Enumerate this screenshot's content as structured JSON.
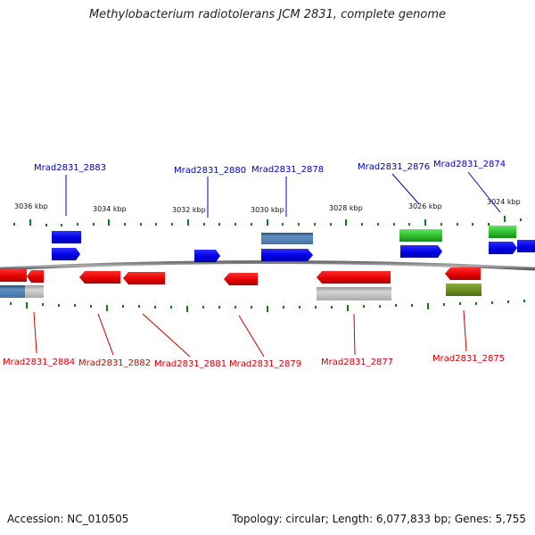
{
  "title": "Methylobacterium radiotolerans JCM 2831, complete genome",
  "footer": {
    "accession_label": "Accession:",
    "accession": "NC_010505",
    "topology_text": "Topology: circular; Length: 6,077,833 bp; Genes: 5,755"
  },
  "colors": {
    "forward_label": "#0000c0",
    "reverse_label": "#cc0000",
    "forward_gene": "#0000ee",
    "reverse_gene": "#ee0000",
    "tick": "#1a7a1a",
    "backbone": "#808080"
  },
  "scale": {
    "unit": "kbp",
    "tick_labels": [
      "3036 kbp",
      "3034 kbp",
      "3032 kbp",
      "3030 kbp",
      "3028 kbp",
      "3026 kbp",
      "3024 kbp"
    ]
  },
  "genes": [
    {
      "id": "Mrad2831_2883",
      "strand": "+"
    },
    {
      "id": "Mrad2831_2880",
      "strand": "+"
    },
    {
      "id": "Mrad2831_2878",
      "strand": "+"
    },
    {
      "id": "Mrad2831_2876",
      "strand": "+"
    },
    {
      "id": "Mrad2831_2874",
      "strand": "+"
    },
    {
      "id": "Mrad2831_2884",
      "strand": "-"
    },
    {
      "id": "Mrad2831_2882",
      "strand": "-"
    },
    {
      "id": "Mrad2831_2881",
      "strand": "-"
    },
    {
      "id": "Mrad2831_2879",
      "strand": "-"
    },
    {
      "id": "Mrad2831_2877",
      "strand": "-"
    },
    {
      "id": "Mrad2831_2875",
      "strand": "-"
    }
  ]
}
